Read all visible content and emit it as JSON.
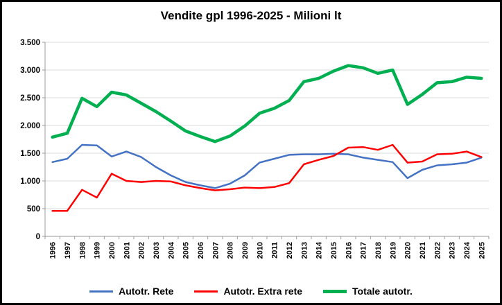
{
  "chart_data": {
    "type": "line",
    "title": "Vendite gpl 1996-2025 - Milioni lt",
    "xlabel": "",
    "ylabel": "",
    "ylim": [
      0,
      3500
    ],
    "grid": true,
    "legend_position": "bottom",
    "x": [
      "1996",
      "1997",
      "1998",
      "1999",
      "2000",
      "2001",
      "2002",
      "2003",
      "2004",
      "2005",
      "2006",
      "2007",
      "2008",
      "2009",
      "2010",
      "2011",
      "2012",
      "2013",
      "2014",
      "2015",
      "2016",
      "2017",
      "2018",
      "2019",
      "2020",
      "2021",
      "2022",
      "2023",
      "2024",
      "2025"
    ],
    "y_ticks": {
      "values": [
        0,
        500,
        1000,
        1500,
        2000,
        2500,
        3000,
        3500
      ],
      "labels": [
        "0",
        "500",
        "1.000",
        "1.500",
        "2.000",
        "2.500",
        "3.000",
        "3.500"
      ]
    },
    "series": [
      {
        "name": "Autotr. Rete",
        "color": "#4472C4",
        "width": 2.5,
        "values": [
          1340,
          1400,
          1650,
          1640,
          1440,
          1530,
          1430,
          1250,
          1100,
          980,
          920,
          870,
          950,
          1100,
          1330,
          1400,
          1470,
          1480,
          1480,
          1490,
          1480,
          1420,
          1380,
          1340,
          1050,
          1200,
          1280,
          1300,
          1330,
          1420
        ]
      },
      {
        "name": "Autotr. Extra rete",
        "color": "#FF0000",
        "width": 2.5,
        "values": [
          460,
          460,
          840,
          700,
          1130,
          1000,
          980,
          1000,
          990,
          920,
          870,
          830,
          850,
          880,
          870,
          890,
          960,
          1300,
          1380,
          1450,
          1600,
          1610,
          1560,
          1650,
          1330,
          1350,
          1480,
          1490,
          1530,
          1430
        ]
      },
      {
        "name": "Totale autotr.",
        "color": "#00B050",
        "width": 4.5,
        "values": [
          1790,
          1860,
          2490,
          2340,
          2600,
          2550,
          2400,
          2250,
          2080,
          1900,
          1800,
          1710,
          1810,
          1990,
          2220,
          2310,
          2450,
          2790,
          2850,
          2980,
          3080,
          3040,
          2940,
          3000,
          2380,
          2560,
          2770,
          2790,
          2870,
          2850
        ]
      }
    ],
    "colors": {
      "gridline": "#d9d9d9",
      "axis": "#9a9a9a",
      "text": "#000000"
    }
  }
}
